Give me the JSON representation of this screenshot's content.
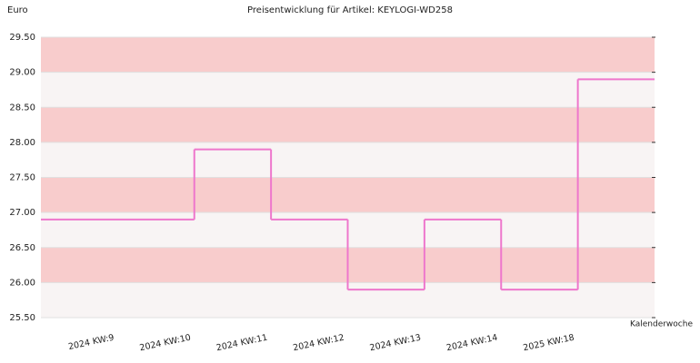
{
  "chart_data": {
    "type": "step",
    "title": "Preisentwicklung für Artikel: KEYLOGI-WD258",
    "y_label": "Euro",
    "x_label": "Kalenderwoche",
    "categories": [
      "2024 KW:9",
      "2024 KW:10",
      "2024 KW:11",
      "2024 KW:12",
      "2024 KW:13",
      "2024 KW:14",
      "2025 KW:18"
    ],
    "values": [
      26.9,
      27.9,
      26.9,
      25.9,
      26.9,
      25.9,
      28.9
    ],
    "color": "#ee77cc",
    "band_colors": [
      "#f8f4f4",
      "#f8cccc"
    ],
    "ylim": [
      25.5,
      29.5
    ],
    "yticks": [
      {
        "value": 25.5,
        "label": "25.50"
      },
      {
        "value": 26,
        "label": "26.00"
      },
      {
        "value": 26.5,
        "label": "26.50"
      },
      {
        "value": 27,
        "label": "27.00"
      },
      {
        "value": 27.5,
        "label": "27.50"
      },
      {
        "value": 28,
        "label": "28.00"
      },
      {
        "value": 28.5,
        "label": "28.50"
      },
      {
        "value": 29,
        "label": "29.00"
      },
      {
        "value": 29.5,
        "label": "29.50"
      }
    ],
    "grid": true
  }
}
